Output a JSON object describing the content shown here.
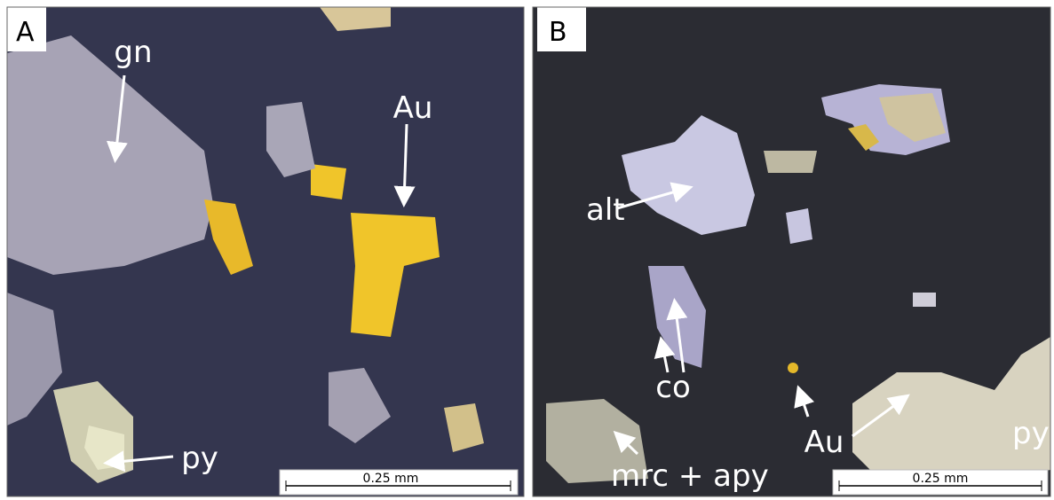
{
  "panels": [
    {
      "label": "A",
      "annotations": [
        "gn",
        "Au",
        "py"
      ],
      "scale_bar": "0.25 mm"
    },
    {
      "label": "B",
      "annotations": [
        "alt",
        "co",
        "Au",
        "mrc + apy",
        "py"
      ],
      "scale_bar": "0.25 mm"
    }
  ]
}
